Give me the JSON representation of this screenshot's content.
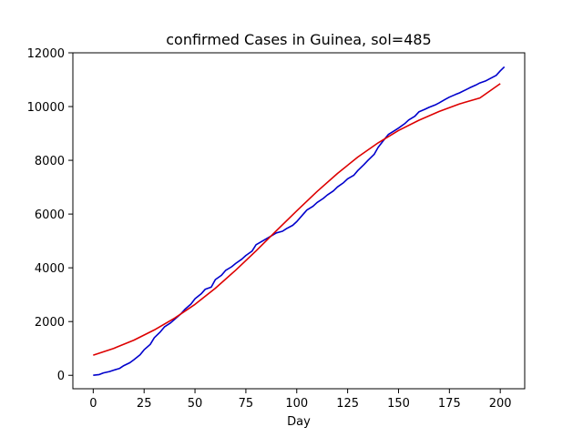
{
  "chart_data": {
    "type": "line",
    "title": "confirmed Cases in Guinea, sol=485",
    "xlabel": "Day",
    "ylabel": "",
    "xlim": [
      -10,
      212
    ],
    "ylim": [
      -500,
      12000
    ],
    "xticks": [
      0,
      25,
      50,
      75,
      100,
      125,
      150,
      175,
      200
    ],
    "yticks": [
      0,
      2000,
      4000,
      6000,
      8000,
      10000,
      12000
    ],
    "grid": false,
    "legend": "none",
    "series": [
      {
        "color": "#0000cc",
        "x": [
          0,
          3,
          5,
          8,
          10,
          13,
          15,
          18,
          20,
          23,
          25,
          28,
          30,
          33,
          35,
          38,
          40,
          43,
          45,
          48,
          50,
          53,
          55,
          58,
          60,
          63,
          65,
          68,
          70,
          73,
          75,
          78,
          80,
          83,
          85,
          88,
          90,
          93,
          95,
          98,
          100,
          103,
          105,
          108,
          110,
          113,
          115,
          118,
          120,
          123,
          125,
          128,
          130,
          133,
          135,
          138,
          140,
          143,
          145,
          148,
          150,
          153,
          155,
          158,
          160,
          163,
          165,
          168,
          170,
          173,
          175,
          178,
          180,
          183,
          185,
          188,
          190,
          193,
          195,
          198,
          200,
          202
        ],
        "y": [
          0,
          30,
          90,
          140,
          190,
          260,
          360,
          470,
          580,
          760,
          950,
          1150,
          1400,
          1620,
          1800,
          1950,
          2080,
          2280,
          2450,
          2650,
          2850,
          3030,
          3200,
          3280,
          3560,
          3720,
          3900,
          4040,
          4160,
          4320,
          4460,
          4620,
          4860,
          4990,
          5080,
          5210,
          5300,
          5360,
          5460,
          5580,
          5720,
          5980,
          6150,
          6290,
          6430,
          6580,
          6710,
          6860,
          7010,
          7170,
          7310,
          7440,
          7620,
          7840,
          8000,
          8220,
          8480,
          8770,
          8960,
          9100,
          9200,
          9360,
          9500,
          9640,
          9800,
          9900,
          9970,
          10060,
          10140,
          10270,
          10350,
          10450,
          10510,
          10620,
          10700,
          10800,
          10880,
          10960,
          11040,
          11160,
          11330,
          11480
        ]
      },
      {
        "color": "#dd0000",
        "x": [
          0,
          10,
          20,
          30,
          40,
          50,
          60,
          70,
          80,
          90,
          100,
          110,
          120,
          130,
          140,
          150,
          160,
          170,
          180,
          190,
          200
        ],
        "y": [
          750,
          1000,
          1310,
          1690,
          2130,
          2640,
          3240,
          3910,
          4630,
          5380,
          6120,
          6840,
          7510,
          8120,
          8650,
          9110,
          9490,
          9820,
          10100,
          10320,
          10850
        ]
      }
    ]
  }
}
